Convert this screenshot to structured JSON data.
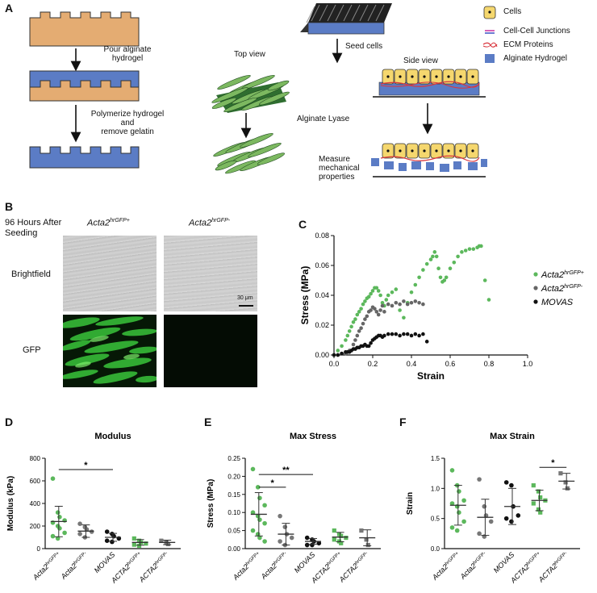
{
  "panels": {
    "a": {
      "letter": "A",
      "pour": "Pour alginate\nhydrogel",
      "polymerize": "Polymerize hydrogel\nand\nremove gelatin",
      "top_view": "Top view",
      "seed_cells": "Seed cells",
      "side_view": "Side view",
      "alginate_lyase": "Alginate Lyase",
      "measure": "Measure\nmechanical\nproperties",
      "legend": [
        "Cells",
        "Cell-Cell Junctions",
        "ECM Proteins",
        "Alginate Hydrogel"
      ]
    },
    "b": {
      "letter": "B",
      "time_label": "96 Hours After\nSeeding",
      "col1_base": "Acta2",
      "col1_sup": "hrGFP+",
      "col2_base": "Acta2",
      "col2_sup": "hrGFP-",
      "row1": "Brightfield",
      "row2": "GFP",
      "scale": "30 μm"
    },
    "c": {
      "letter": "C"
    },
    "d": {
      "letter": "D"
    },
    "e": {
      "letter": "E"
    },
    "f": {
      "letter": "F"
    }
  },
  "chart_data": [
    {
      "id": "C",
      "type": "scatter",
      "xlabel": "Strain",
      "ylabel": "Stress (MPa)",
      "xlim": [
        0,
        1.0
      ],
      "ylim": [
        0,
        0.08
      ],
      "xticks": [
        "0.0",
        "0.2",
        "0.4",
        "0.6",
        "0.8",
        "1.0"
      ],
      "yticks": [
        "0.00",
        "0.02",
        "0.04",
        "0.06",
        "0.08"
      ],
      "legend": "right",
      "series": [
        {
          "name": "Acta2 hrGFP+",
          "base": "Acta2",
          "sup": "hrGFP+",
          "color": "#5cb85c",
          "x": [
            0.0,
            0.02,
            0.04,
            0.06,
            0.07,
            0.08,
            0.09,
            0.1,
            0.11,
            0.12,
            0.13,
            0.14,
            0.15,
            0.16,
            0.17,
            0.18,
            0.19,
            0.2,
            0.21,
            0.22,
            0.23,
            0.24,
            0.25,
            0.26,
            0.27,
            0.28,
            0.3,
            0.32,
            0.34,
            0.36,
            0.38,
            0.4,
            0.42,
            0.44,
            0.46,
            0.48,
            0.5,
            0.51,
            0.52,
            0.53,
            0.54,
            0.55,
            0.56,
            0.57,
            0.58,
            0.6,
            0.62,
            0.64,
            0.66,
            0.68,
            0.7,
            0.72,
            0.74,
            0.75,
            0.76,
            0.78,
            0.8
          ],
          "y": [
            0.0,
            0.003,
            0.006,
            0.01,
            0.013,
            0.016,
            0.019,
            0.022,
            0.024,
            0.027,
            0.029,
            0.031,
            0.034,
            0.036,
            0.038,
            0.039,
            0.041,
            0.043,
            0.045,
            0.045,
            0.043,
            0.04,
            0.035,
            0.033,
            0.037,
            0.04,
            0.042,
            0.044,
            0.03,
            0.025,
            0.035,
            0.042,
            0.047,
            0.052,
            0.057,
            0.061,
            0.064,
            0.066,
            0.069,
            0.066,
            0.058,
            0.052,
            0.049,
            0.05,
            0.052,
            0.058,
            0.062,
            0.066,
            0.069,
            0.07,
            0.071,
            0.071,
            0.072,
            0.073,
            0.073,
            0.05,
            0.037
          ]
        },
        {
          "name": "Acta2 hrGFP-",
          "base": "Acta2",
          "sup": "hrGFP-",
          "color": "#666666",
          "x": [
            0.0,
            0.02,
            0.04,
            0.06,
            0.08,
            0.1,
            0.11,
            0.12,
            0.13,
            0.14,
            0.15,
            0.16,
            0.17,
            0.18,
            0.19,
            0.2,
            0.21,
            0.22,
            0.23,
            0.24,
            0.25,
            0.26,
            0.28,
            0.3,
            0.32,
            0.34,
            0.36,
            0.38,
            0.4,
            0.42,
            0.44,
            0.46
          ],
          "y": [
            0.0,
            0.0,
            0.001,
            0.001,
            0.003,
            0.007,
            0.01,
            0.013,
            0.016,
            0.018,
            0.021,
            0.024,
            0.026,
            0.029,
            0.03,
            0.032,
            0.031,
            0.029,
            0.027,
            0.03,
            0.033,
            0.029,
            0.034,
            0.033,
            0.035,
            0.034,
            0.036,
            0.034,
            0.035,
            0.036,
            0.035,
            0.034
          ]
        },
        {
          "name": "MOVAS",
          "color": "#111111",
          "x": [
            0.0,
            0.02,
            0.04,
            0.06,
            0.07,
            0.08,
            0.09,
            0.1,
            0.11,
            0.12,
            0.13,
            0.14,
            0.15,
            0.16,
            0.17,
            0.18,
            0.19,
            0.2,
            0.21,
            0.22,
            0.23,
            0.24,
            0.25,
            0.26,
            0.28,
            0.3,
            0.32,
            0.34,
            0.36,
            0.38,
            0.4,
            0.42,
            0.44,
            0.46,
            0.48
          ],
          "y": [
            0.0,
            0.0,
            0.001,
            0.002,
            0.002,
            0.002,
            0.003,
            0.004,
            0.004,
            0.005,
            0.005,
            0.006,
            0.006,
            0.007,
            0.006,
            0.006,
            0.008,
            0.01,
            0.011,
            0.012,
            0.013,
            0.013,
            0.012,
            0.013,
            0.014,
            0.014,
            0.014,
            0.013,
            0.014,
            0.014,
            0.013,
            0.014,
            0.013,
            0.014,
            0.009
          ]
        }
      ]
    },
    {
      "id": "D",
      "type": "scatter",
      "title": "Modulus",
      "ylabel": "Modulus (kPa)",
      "ylim": [
        0,
        800
      ],
      "yticks": [
        "0",
        "200",
        "400",
        "600",
        "800"
      ],
      "categories": [
        {
          "base": "Acta2",
          "sup": "hrGFP+",
          "color": "#5cb85c",
          "shape": "circle"
        },
        {
          "base": "Acta2",
          "sup": "hrGFP-",
          "color": "#777777",
          "shape": "circle"
        },
        {
          "base": "MOVAS",
          "sup": "",
          "color": "#111111",
          "shape": "circle"
        },
        {
          "base": "ACTA2",
          "sup": "hrGFP+",
          "color": "#5cb85c",
          "shape": "square"
        },
        {
          "base": "ACTA2",
          "sup": "hrGFP-",
          "color": "#777777",
          "shape": "square"
        }
      ],
      "values": [
        [
          620,
          320,
          280,
          250,
          230,
          200,
          180,
          140,
          110,
          90
        ],
        [
          220,
          190,
          170,
          150,
          130,
          100
        ],
        [
          150,
          130,
          110,
          90,
          70,
          60
        ],
        [
          90,
          70,
          55,
          45,
          35,
          25
        ],
        [
          70,
          55,
          40
        ]
      ],
      "mean": [
        240,
        155,
        100,
        55,
        55
      ],
      "sd": [
        135,
        55,
        35,
        25,
        20
      ],
      "significance": [
        {
          "from": 0,
          "to": 2,
          "label": "*",
          "y": 700
        }
      ]
    },
    {
      "id": "E",
      "type": "scatter",
      "title": "Max Stress",
      "ylabel": "Stress (MPa)",
      "ylim": [
        0,
        0.25
      ],
      "yticks": [
        "0.00",
        "0.05",
        "0.10",
        "0.15",
        "0.20",
        "0.25"
      ],
      "categories": [
        {
          "base": "Acta2",
          "sup": "hrGFP+",
          "color": "#5cb85c",
          "shape": "circle"
        },
        {
          "base": "Acta2",
          "sup": "hrGFP-",
          "color": "#777777",
          "shape": "circle"
        },
        {
          "base": "MOVAS",
          "sup": "",
          "color": "#111111",
          "shape": "circle"
        },
        {
          "base": "ACTA2",
          "sup": "hrGFP+",
          "color": "#5cb85c",
          "shape": "square"
        },
        {
          "base": "ACTA2",
          "sup": "hrGFP-",
          "color": "#777777",
          "shape": "square"
        }
      ],
      "values": [
        [
          0.22,
          0.17,
          0.14,
          0.12,
          0.1,
          0.09,
          0.08,
          0.07,
          0.05,
          0.04,
          0.03,
          0.02
        ],
        [
          0.09,
          0.06,
          0.04,
          0.03,
          0.02,
          0.01
        ],
        [
          0.03,
          0.025,
          0.02,
          0.015,
          0.01,
          0.01
        ],
        [
          0.05,
          0.04,
          0.035,
          0.03,
          0.025,
          0.02,
          0.015
        ],
        [
          0.05,
          0.025,
          0.01
        ]
      ],
      "mean": [
        0.095,
        0.04,
        0.02,
        0.032,
        0.03
      ],
      "sd": [
        0.06,
        0.03,
        0.008,
        0.013,
        0.022
      ],
      "significance": [
        {
          "from": 0,
          "to": 1,
          "label": "*",
          "y": 0.17
        },
        {
          "from": 0,
          "to": 2,
          "label": "**",
          "y": 0.205
        }
      ]
    },
    {
      "id": "F",
      "type": "scatter",
      "title": "Max Strain",
      "ylabel": "Strain",
      "ylim": [
        0,
        1.5
      ],
      "yticks": [
        "0.0",
        "0.5",
        "1.0",
        "1.5"
      ],
      "categories": [
        {
          "base": "Acta2",
          "sup": "hrGFP+",
          "color": "#5cb85c",
          "shape": "circle"
        },
        {
          "base": "Acta2",
          "sup": "hrGFP-",
          "color": "#777777",
          "shape": "circle"
        },
        {
          "base": "MOVAS",
          "sup": "",
          "color": "#111111",
          "shape": "circle"
        },
        {
          "base": "ACTA2",
          "sup": "hrGFP+",
          "color": "#5cb85c",
          "shape": "square"
        },
        {
          "base": "ACTA2",
          "sup": "hrGFP-",
          "color": "#777777",
          "shape": "square"
        }
      ],
      "values": [
        [
          1.3,
          1.05,
          0.95,
          0.8,
          0.75,
          0.7,
          0.6,
          0.45,
          0.35,
          0.3
        ],
        [
          1.15,
          0.7,
          0.55,
          0.45,
          0.25,
          0.2
        ],
        [
          1.1,
          1.05,
          0.7,
          0.55,
          0.5,
          0.45
        ],
        [
          1.05,
          0.95,
          0.85,
          0.8,
          0.75,
          0.65,
          0.6
        ],
        [
          1.25,
          1.1,
          1.0
        ]
      ],
      "mean": [
        0.72,
        0.52,
        0.7,
        0.8,
        1.12
      ],
      "sd": [
        0.33,
        0.3,
        0.3,
        0.17,
        0.13
      ],
      "significance": [
        {
          "from": 3,
          "to": 4,
          "label": "*",
          "y": 1.35
        }
      ]
    }
  ]
}
